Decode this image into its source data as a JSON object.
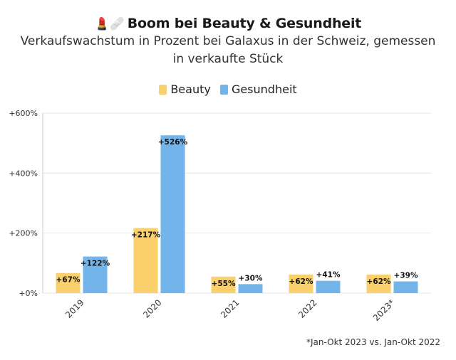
{
  "header": {
    "emoji_icons": "💄🩹",
    "title": "Boom bei Beauty & Gesundheit",
    "subtitle": "Verkaufswachstum in Prozent bei Galaxus in der Schweiz, gemessen in verkaufte Stück"
  },
  "footnote": "*Jan-Okt 2023 vs. Jan-Okt 2022",
  "colors": {
    "beauty": "#f9d06b",
    "gesundheit": "#73b4ea",
    "grid": "#e6e6e6",
    "axis": "#cccccc"
  },
  "chart_data": {
    "type": "bar",
    "categories": [
      "2019",
      "2020",
      "2021",
      "2022",
      "2023*"
    ],
    "series": [
      {
        "name": "Beauty",
        "values": [
          67,
          217,
          55,
          62,
          62
        ],
        "labels": [
          "+67%",
          "+217%",
          "+55%",
          "+62%",
          "+62%"
        ]
      },
      {
        "name": "Gesundheit",
        "values": [
          122,
          526,
          30,
          41,
          39
        ],
        "labels": [
          "+122%",
          "+526%",
          "+30%",
          "+41%",
          "+39%"
        ]
      }
    ],
    "yticks": [
      0,
      200,
      400,
      600
    ],
    "ytick_labels": [
      "+0%",
      "+200%",
      "+400%",
      "+600%"
    ],
    "ylim": [
      0,
      600
    ],
    "legend_position": "top-center"
  }
}
